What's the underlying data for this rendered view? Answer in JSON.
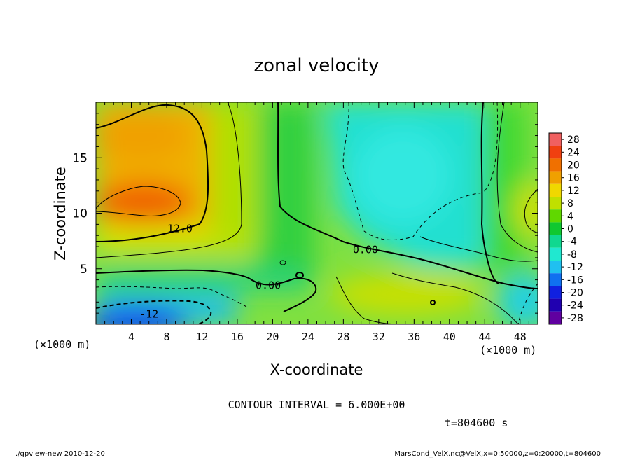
{
  "chart_data": {
    "type": "heatmap",
    "title": "zonal velocity",
    "xlabel": "X-coordinate",
    "ylabel": "Z-coordinate",
    "x_unit_label": "(×1000 m)",
    "z_unit_label": "(×1000 m)",
    "xlim": [
      0,
      50
    ],
    "ylim": [
      0,
      20
    ],
    "x_ticks": [
      4,
      8,
      12,
      16,
      20,
      24,
      28,
      32,
      36,
      40,
      44,
      48
    ],
    "y_ticks": [
      5,
      10,
      15
    ],
    "contour_interval_text": "CONTOUR INTERVAL = 6.000E+00",
    "time_label": "t=804600 s",
    "contour_labels": [
      {
        "text": "12.0",
        "x": 9.5,
        "z": 8.3
      },
      {
        "text": "0.00",
        "x": 30.5,
        "z": 6.4
      },
      {
        "text": "0.00",
        "x": 19.5,
        "z": 3.2
      },
      {
        "text": "-12",
        "x": 6.0,
        "z": 0.6
      }
    ],
    "colorbar": {
      "levels": [
        28,
        24,
        20,
        16,
        12,
        8,
        4,
        0,
        -4,
        -8,
        -12,
        -16,
        -20,
        -24,
        -28
      ],
      "colors": [
        "#f06060",
        "#f04010",
        "#f07000",
        "#f0a000",
        "#f0d800",
        "#c0e000",
        "#60d800",
        "#10c830",
        "#10d890",
        "#20e8d0",
        "#20c0f0",
        "#1070f0",
        "#1020e0",
        "#2000b0",
        "#6000a0"
      ]
    },
    "field_samples_m_per_s": [
      {
        "x": 5,
        "z": 17,
        "u": 17
      },
      {
        "x": 5,
        "z": 11,
        "u": 21
      },
      {
        "x": 14,
        "z": 14,
        "u": 13
      },
      {
        "x": 20,
        "z": 14,
        "u": 5
      },
      {
        "x": 35,
        "z": 13,
        "u": -10
      },
      {
        "x": 46,
        "z": 14,
        "u": 4
      },
      {
        "x": 49,
        "z": 10,
        "u": 12
      },
      {
        "x": 10,
        "z": 5.5,
        "u": 5
      },
      {
        "x": 35,
        "z": 3,
        "u": 10
      },
      {
        "x": 6,
        "z": 1,
        "u": -17
      },
      {
        "x": 48,
        "z": 2,
        "u": -8
      }
    ]
  },
  "footer": {
    "left": "./gpview-new   2010-12-20",
    "right": "MarsCond_VelX.nc@VelX,x=0:50000,z=0:20000,t=804600"
  }
}
